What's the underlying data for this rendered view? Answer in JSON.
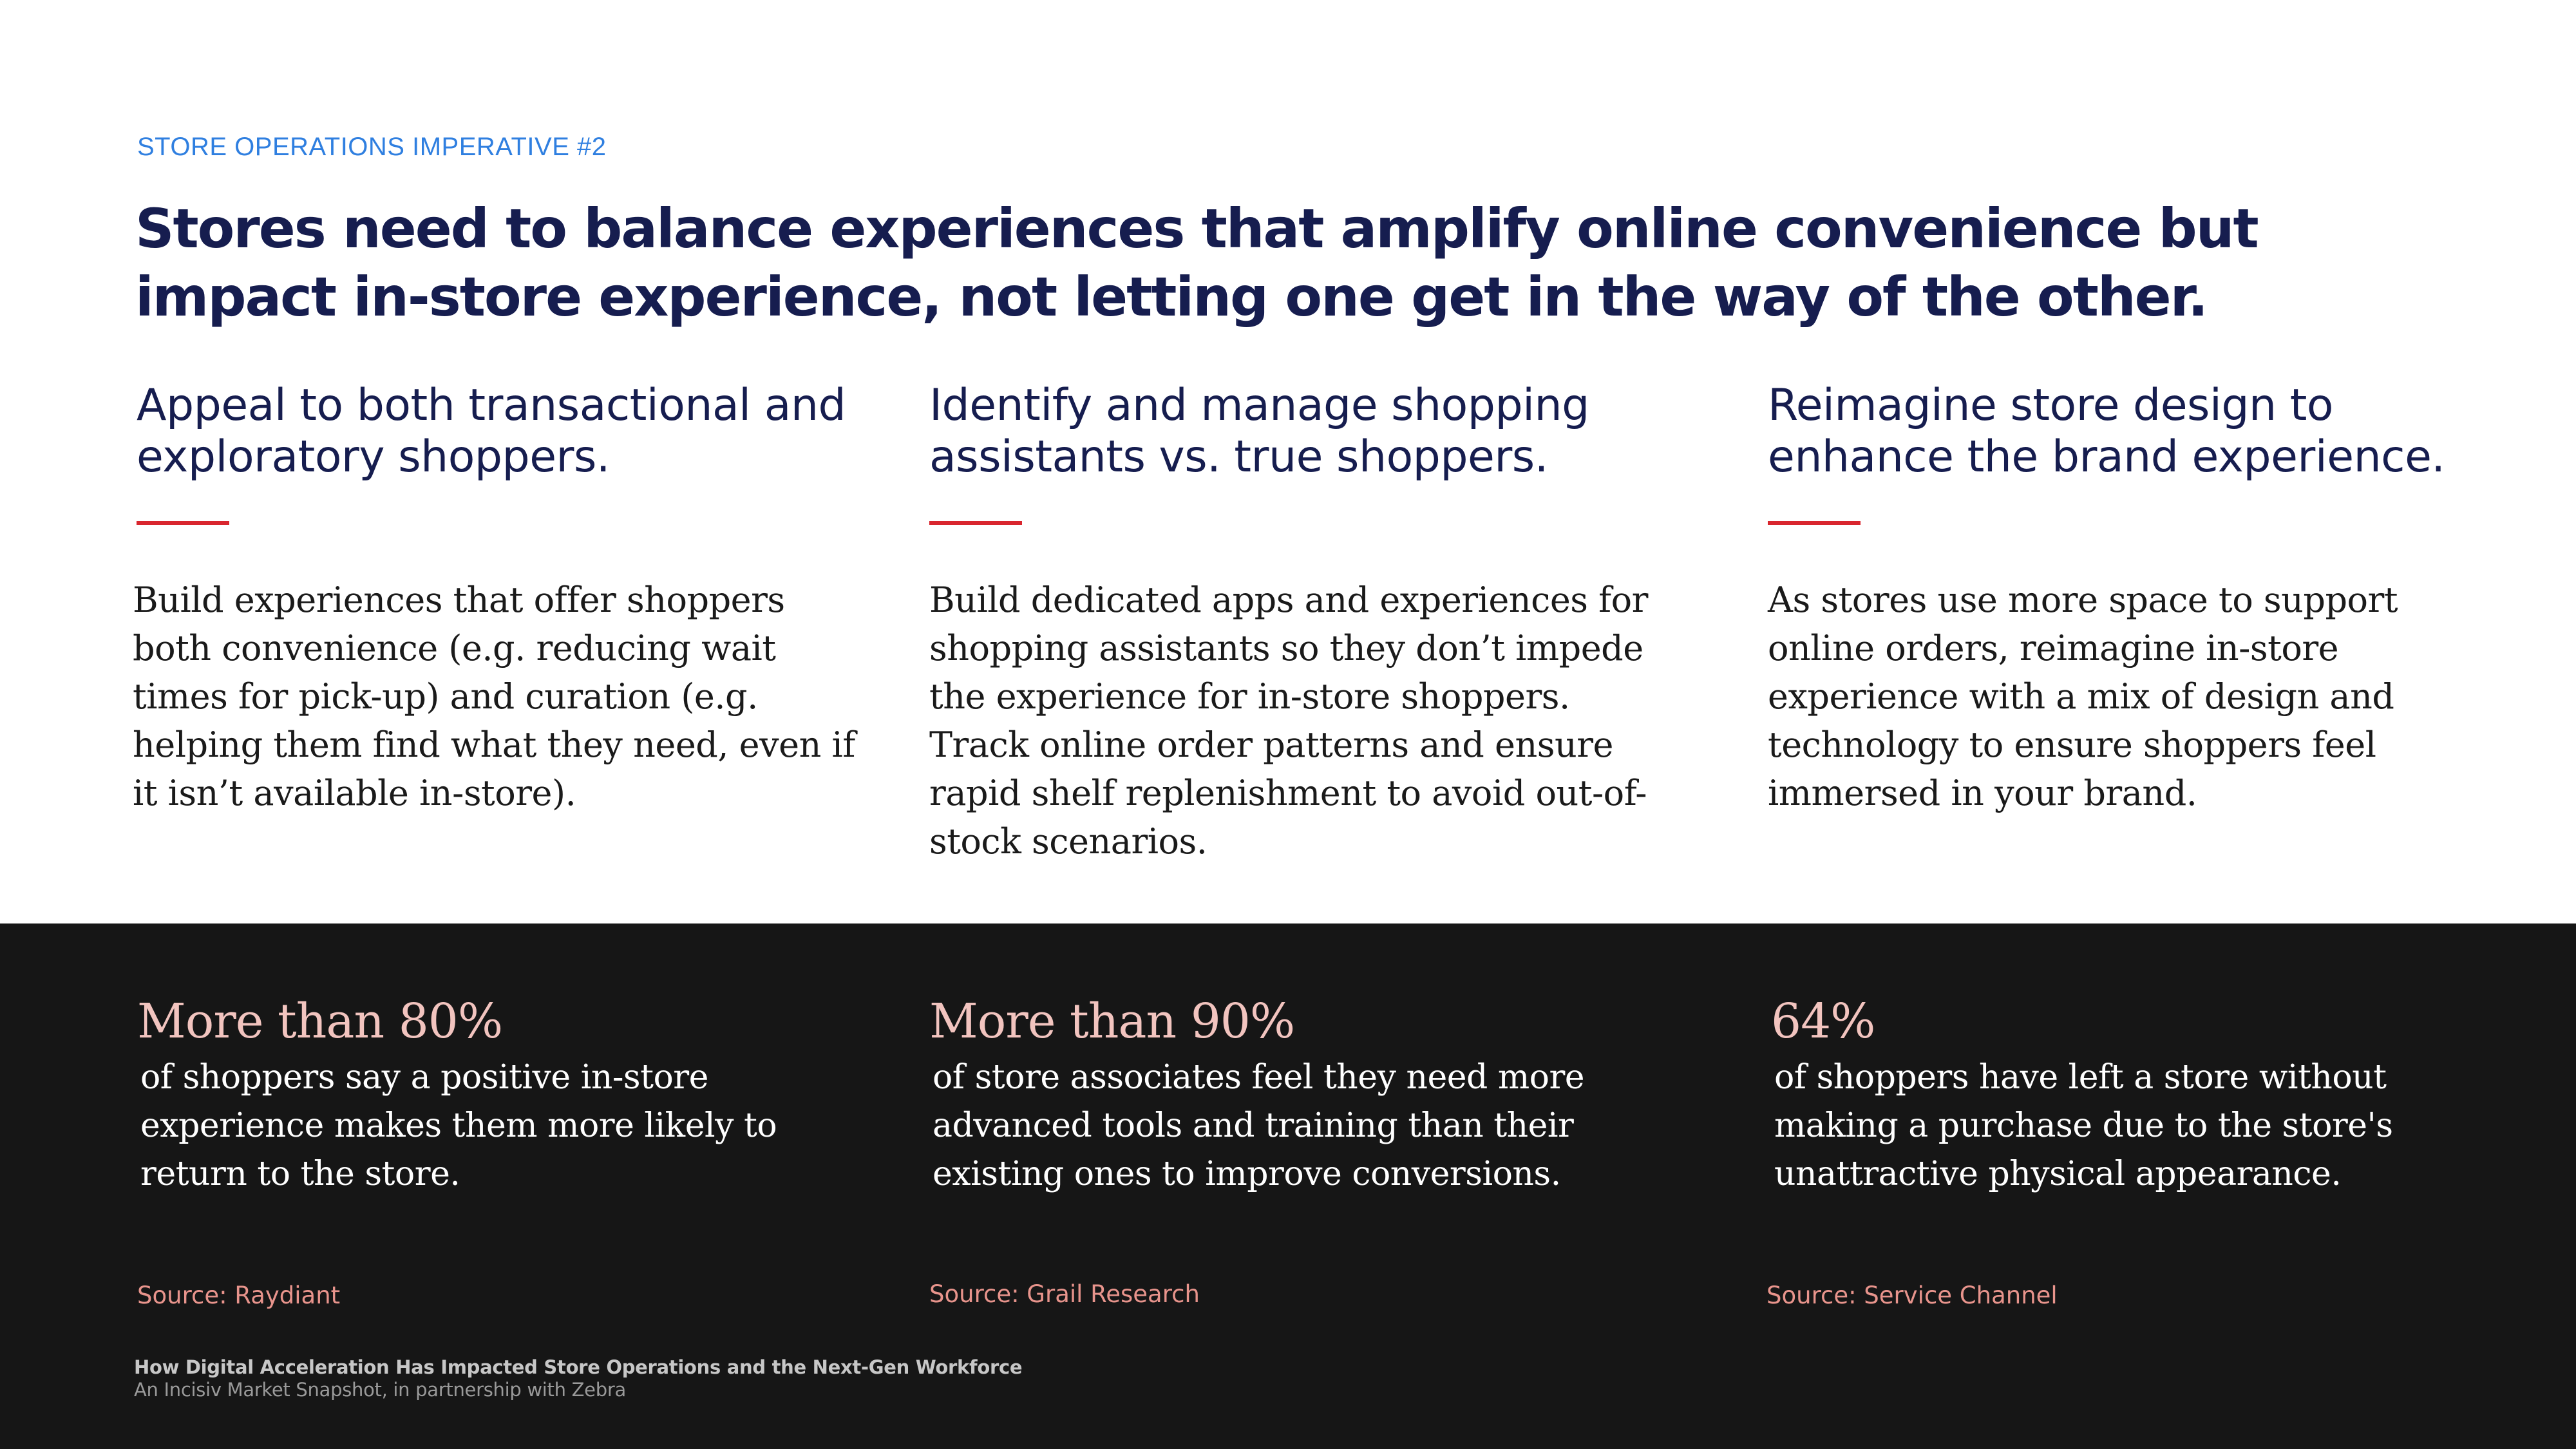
{
  "eyebrow": "STORE OPERATIONS IMPERATIVE #2",
  "headline": "Stores need to balance experiences that amplify online convenience but impact in-store experience, not letting one get in the way of the other.",
  "columns": [
    {
      "heading": "Appeal to both transactional and exploratory shoppers.",
      "body": "Build experiences that offer shoppers both convenience (e.g. reducing wait times for pick-up) and curation (e.g. helping them find what they need, even if it isn’t available in-store)."
    },
    {
      "heading": "Identify and manage shopping assistants vs. true shoppers.",
      "body": "Build dedicated apps and experiences for shopping assistants so they don’t impede the experience for in-store shoppers. Track online order patterns and ensure rapid shelf replenishment to avoid out-of-stock scenarios."
    },
    {
      "heading": "Reimagine store design to enhance the brand experience.",
      "body": "As stores use more space to support online orders, reimagine in-store experience with a mix of design and technology to ensure shoppers feel immersed in your brand."
    }
  ],
  "stats": [
    {
      "value": "More than 80%",
      "description": "of shoppers say a positive in-store experience makes them more likely to return to the store.",
      "source": "Source: Raydiant"
    },
    {
      "value": "More than 90%",
      "description": "of store associates feel they need more advanced tools and training than their existing ones to improve conversions.",
      "source": "Source: Grail Research"
    },
    {
      "value": "64%",
      "description": "of shoppers have left a store without making a purchase due to the store's unattractive physical appearance.",
      "source": "Source: Service Channel"
    }
  ],
  "footer": {
    "title": "How Digital Acceleration Has Impacted Store Operations and the Next-Gen Workforce",
    "subtitle": "An Incisiv Market Snapshot, in partnership with Zebra"
  },
  "colors": {
    "eyebrow": "#2f7fe0",
    "navy": "#161d4f",
    "accent_red": "#d9262e",
    "dark_band": "#161616",
    "stat_value": "#f2c4bf",
    "source": "#e8948c"
  }
}
